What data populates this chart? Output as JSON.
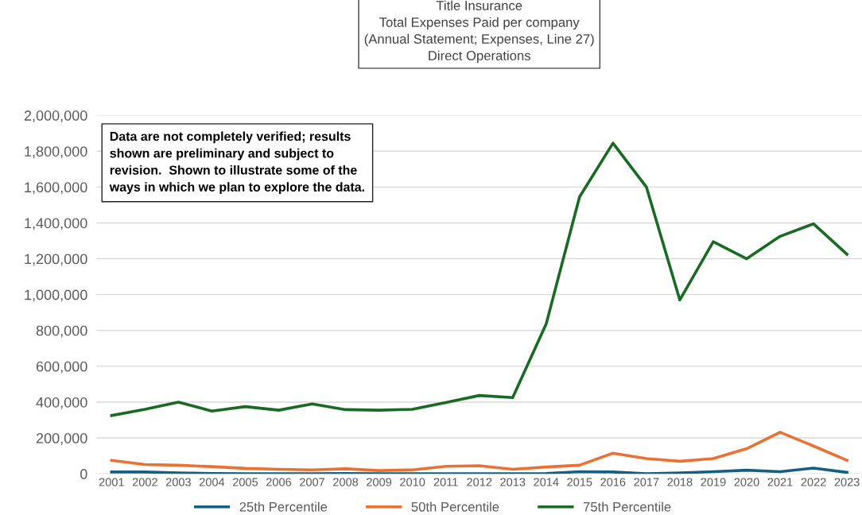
{
  "chart_data": {
    "type": "line",
    "title": "Title Insurance\nTotal Expenses Paid per company\n(Annual Statement; Expenses, Line 27)\nDirect Operations",
    "categories": [
      "2001",
      "2002",
      "2003",
      "2004",
      "2005",
      "2006",
      "2007",
      "2008",
      "2009",
      "2010",
      "2011",
      "2012",
      "2013",
      "2014",
      "2015",
      "2016",
      "2017",
      "2018",
      "2019",
      "2020",
      "2021",
      "2022",
      "2023"
    ],
    "series": [
      {
        "name": "25th Percentile",
        "color": "#156082",
        "values": [
          10000,
          10000,
          5000,
          2000,
          0,
          0,
          0,
          2000,
          0,
          0,
          0,
          0,
          0,
          2000,
          12000,
          10000,
          0,
          5000,
          12000,
          20000,
          12000,
          32000,
          8000
        ]
      },
      {
        "name": "50th Percentile",
        "color": "#e97132",
        "values": [
          75000,
          52000,
          48000,
          40000,
          30000,
          25000,
          22000,
          28000,
          18000,
          22000,
          42000,
          45000,
          25000,
          38000,
          48000,
          115000,
          85000,
          70000,
          85000,
          140000,
          232000,
          155000,
          75000
        ]
      },
      {
        "name": "75th Percentile",
        "color": "#196b24",
        "values": [
          325000,
          360000,
          400000,
          350000,
          375000,
          355000,
          390000,
          358000,
          355000,
          360000,
          398000,
          437000,
          425000,
          835000,
          1545000,
          1845000,
          1600000,
          970000,
          1295000,
          1200000,
          1325000,
          1395000,
          1225000
        ]
      }
    ],
    "ylim": [
      0,
      2000000
    ],
    "yticks": [
      {
        "value": 0,
        "label": "0"
      },
      {
        "value": 200000,
        "label": "200,000"
      },
      {
        "value": 400000,
        "label": "400,000"
      },
      {
        "value": 600000,
        "label": "600,000"
      },
      {
        "value": 800000,
        "label": "800,000"
      },
      {
        "value": 1000000,
        "label": "1,000,000"
      },
      {
        "value": 1200000,
        "label": "1,200,000"
      },
      {
        "value": 1400000,
        "label": "1,400,000"
      },
      {
        "value": 1600000,
        "label": "1,600,000"
      },
      {
        "value": 1800000,
        "label": "1,800,000"
      },
      {
        "value": 2000000,
        "label": "2,000,000"
      }
    ],
    "grid": "y",
    "legend": "bottom",
    "marker": "none",
    "line_style": "solid",
    "annotations": [
      "Data are not completely verified; results\nshown are preliminary and subject to\nrevision.  Shown to illustrate some of the\nways in which we plan to explore the data."
    ]
  }
}
